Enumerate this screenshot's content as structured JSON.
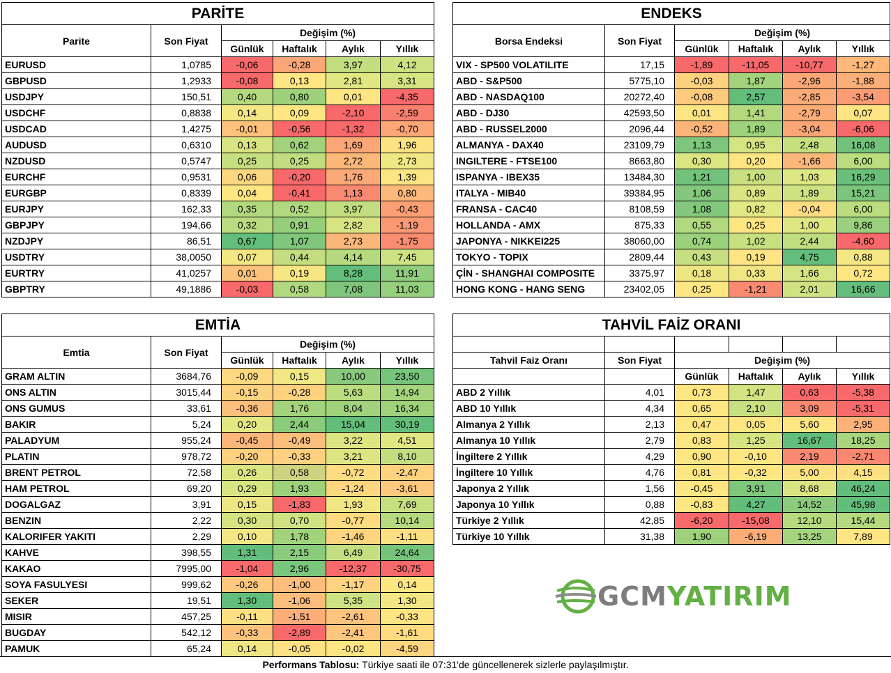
{
  "parite": {
    "title": "PARİTE",
    "col_name": "Parite",
    "col_price": "Son Fiyat",
    "col_change": "Değişim (%)",
    "col_d": "Günlük",
    "col_w": "Haftalık",
    "col_m": "Aylık",
    "col_y": "Yıllık",
    "rows": [
      {
        "name": "EURUSD",
        "price": "1,0785",
        "d": "-0,06",
        "w": "-0,28",
        "m": "3,97",
        "y": "4,12"
      },
      {
        "name": "GBPUSD",
        "price": "1,2933",
        "d": "-0,08",
        "w": "0,13",
        "m": "2,81",
        "y": "3,31"
      },
      {
        "name": "USDJPY",
        "price": "150,51",
        "d": "0,40",
        "w": "0,80",
        "m": "0,01",
        "y": "-4,35"
      },
      {
        "name": "USDCHF",
        "price": "0,8838",
        "d": "0,14",
        "w": "0,09",
        "m": "-2,10",
        "y": "-2,59"
      },
      {
        "name": "USDCAD",
        "price": "1,4275",
        "d": "-0,01",
        "w": "-0,56",
        "m": "-1,32",
        "y": "-0,70"
      },
      {
        "name": "AUDUSD",
        "price": "0,6310",
        "d": "0,13",
        "w": "0,62",
        "m": "1,69",
        "y": "1,96"
      },
      {
        "name": "NZDUSD",
        "price": "0,5747",
        "d": "0,25",
        "w": "0,25",
        "m": "2,72",
        "y": "2,73"
      },
      {
        "name": "EURCHF",
        "price": "0,9531",
        "d": "0,06",
        "w": "-0,20",
        "m": "1,76",
        "y": "1,39"
      },
      {
        "name": "EURGBP",
        "price": "0,8339",
        "d": "0,04",
        "w": "-0,41",
        "m": "1,13",
        "y": "0,80"
      },
      {
        "name": "EURJPY",
        "price": "162,33",
        "d": "0,35",
        "w": "0,52",
        "m": "3,97",
        "y": "-0,43"
      },
      {
        "name": "GBPJPY",
        "price": "194,66",
        "d": "0,32",
        "w": "0,91",
        "m": "2,82",
        "y": "-1,19"
      },
      {
        "name": "NZDJPY",
        "price": "86,51",
        "d": "0,67",
        "w": "1,07",
        "m": "2,73",
        "y": "-1,75"
      },
      {
        "name": "USDTRY",
        "price": "38,0050",
        "d": "0,07",
        "w": "0,44",
        "m": "4,14",
        "y": "7,45"
      },
      {
        "name": "EURTRY",
        "price": "41,0257",
        "d": "0,01",
        "w": "0,19",
        "m": "8,28",
        "y": "11,91"
      },
      {
        "name": "GBPTRY",
        "price": "49,1886",
        "d": "-0,03",
        "w": "0,58",
        "m": "7,08",
        "y": "11,03"
      }
    ],
    "colors": [
      [
        "#f8696b",
        "#fba676",
        "#c2de80",
        "#cde283"
      ],
      [
        "#f8696b",
        "#ffe684",
        "#e1e883",
        "#d6e482"
      ],
      [
        "#b4d97e",
        "#9dd17b",
        "#ffe583",
        "#f8696b"
      ],
      [
        "#f4e784",
        "#fee683",
        "#f8696b",
        "#f97f6f"
      ],
      [
        "#fdc27c",
        "#f8696b",
        "#f8696b",
        "#fba776"
      ],
      [
        "#d8e582",
        "#a2d37c",
        "#fba676",
        "#fde282"
      ],
      [
        "#c5df81",
        "#c1dd80",
        "#fbb879",
        "#f1e784"
      ],
      [
        "#fdd680",
        "#f8696b",
        "#fbaa77",
        "#fee583"
      ],
      [
        "#ffe683",
        "#f8696b",
        "#f98a71",
        "#fcb97a"
      ],
      [
        "#b3d97f",
        "#b1d87f",
        "#c2de80",
        "#faa074"
      ],
      [
        "#bbdb80",
        "#95cf7c",
        "#d8e482",
        "#fa9873"
      ],
      [
        "#63be7b",
        "#80c77c",
        "#fbb779",
        "#f98d71"
      ],
      [
        "#f3e784",
        "#c3de81",
        "#b7d97f",
        "#cce283"
      ],
      [
        "#fdc27c",
        "#f7e784",
        "#63be7b",
        "#90cd7d"
      ],
      [
        "#f8696b",
        "#b0d87f",
        "#7fc67c",
        "#96cf7d"
      ]
    ]
  },
  "endeks": {
    "title": "ENDEKS",
    "col_name": "Borsa Endeksi",
    "col_price": "Son Fiyat",
    "col_change": "Değişim (%)",
    "col_d": "Günlük",
    "col_w": "Haftalık",
    "col_m": "Aylık",
    "col_y": "Yıllık",
    "rows": [
      {
        "name": "VIX  - SP500 VOLATILITE",
        "price": "17,15",
        "d": "-1,89",
        "w": "-11,05",
        "m": "-10,77",
        "y": "-1,27"
      },
      {
        "name": "ABD - S&P500",
        "price": "5775,10",
        "d": "-0,03",
        "w": "1,87",
        "m": "-2,96",
        "y": "-1,88"
      },
      {
        "name": "ABD - NASDAQ100",
        "price": "20272,40",
        "d": "-0,08",
        "w": "2,57",
        "m": "-2,85",
        "y": "-3,54"
      },
      {
        "name": "ABD - DJ30",
        "price": "42593,50",
        "d": "0,01",
        "w": "1,41",
        "m": "-2,79",
        "y": "0,07"
      },
      {
        "name": "ABD - RUSSEL2000",
        "price": "2096,44",
        "d": "-0,52",
        "w": "1,89",
        "m": "-3,04",
        "y": "-6,06"
      },
      {
        "name": "ALMANYA - DAX40",
        "price": "23109,79",
        "d": "1,13",
        "w": "0,95",
        "m": "2,48",
        "y": "16,08"
      },
      {
        "name": "INGILTERE - FTSE100",
        "price": "8663,80",
        "d": "0,30",
        "w": "0,20",
        "m": "-1,66",
        "y": "6,00"
      },
      {
        "name": "ISPANYA - IBEX35",
        "price": "13484,30",
        "d": "1,21",
        "w": "1,00",
        "m": "1,03",
        "y": "16,29"
      },
      {
        "name": "ITALYA - MIB40",
        "price": "39384,95",
        "d": "1,06",
        "w": "0,89",
        "m": "1,89",
        "y": "15,21"
      },
      {
        "name": "FRANSA - CAC40",
        "price": "8108,59",
        "d": "1,08",
        "w": "0,82",
        "m": "-0,04",
        "y": "6,00"
      },
      {
        "name": "HOLLANDA - AMX",
        "price": "875,33",
        "d": "0,55",
        "w": "0,25",
        "m": "1,00",
        "y": "9,86"
      },
      {
        "name": "JAPONYA - NIKKEI225",
        "price": "38060,00",
        "d": "0,74",
        "w": "1,02",
        "m": "2,44",
        "y": "-4,60"
      },
      {
        "name": "TOKYO - TOPIX",
        "price": "2809,44",
        "d": "0,43",
        "w": "0,19",
        "m": "4,75",
        "y": "0,88"
      },
      {
        "name": "ÇİN - SHANGHAI COMPOSITE",
        "price": "3375,97",
        "d": "0,18",
        "w": "0,33",
        "m": "1,66",
        "y": "0,72"
      },
      {
        "name": "HONG KONG - HANG SENG",
        "price": "23402,05",
        "d": "0,25",
        "w": "-1,21",
        "m": "2,01",
        "y": "16,66"
      }
    ],
    "colors": [
      [
        "#f8696b",
        "#f8696b",
        "#f8696b",
        "#fdb87a"
      ],
      [
        "#fdd27f",
        "#a3d37d",
        "#fba876",
        "#fcb079"
      ],
      [
        "#fdca7e",
        "#63be7b",
        "#fbab77",
        "#fb9c74"
      ],
      [
        "#fee583",
        "#b4d97f",
        "#fcad77",
        "#fee483"
      ],
      [
        "#fcb479",
        "#9fd27c",
        "#fba676",
        "#f8696b"
      ],
      [
        "#7dc67c",
        "#d5e482",
        "#c5df81",
        "#72c27c"
      ],
      [
        "#dbe683",
        "#fee683",
        "#fcb87a",
        "#bcdc80"
      ],
      [
        "#73c27b",
        "#c8e082",
        "#dde783",
        "#6ac07b"
      ],
      [
        "#85c87d",
        "#d8e582",
        "#cfe282",
        "#7bc57c"
      ],
      [
        "#83c77d",
        "#e2e883",
        "#fedc82",
        "#bcdc80"
      ],
      [
        "#b0d87f",
        "#fee683",
        "#dfe783",
        "#9bd17e"
      ],
      [
        "#9cd17c",
        "#c7e081",
        "#c0dd80",
        "#f8696b"
      ],
      [
        "#c6df81",
        "#ffe583",
        "#63be7b",
        "#f4e784"
      ],
      [
        "#ece683",
        "#f0e684",
        "#d5e482",
        "#fee683"
      ],
      [
        "#fee683",
        "#f98a71",
        "#d0e282",
        "#63be7b"
      ]
    ]
  },
  "emtia": {
    "title": "EMTİA",
    "col_name": "Emtia",
    "col_price": "Son Fiyat",
    "col_change": "Değişim (%)",
    "col_d": "Günlük",
    "col_w": "Haftalık",
    "col_m": "Aylık",
    "col_y": "Yıllık",
    "rows": [
      {
        "name": "GRAM ALTIN",
        "price": "3684,76",
        "d": "-0,09",
        "w": "0,15",
        "m": "10,00",
        "y": "23,50"
      },
      {
        "name": "ONS ALTIN",
        "price": "3015,44",
        "d": "-0,15",
        "w": "-0,28",
        "m": "5,63",
        "y": "14,94"
      },
      {
        "name": "ONS GUMUS",
        "price": "33,61",
        "d": "-0,36",
        "w": "1,76",
        "m": "8,04",
        "y": "16,34"
      },
      {
        "name": "BAKIR",
        "price": "5,24",
        "d": "0,20",
        "w": "2,44",
        "m": "15,04",
        "y": "30,19"
      },
      {
        "name": "PALADYUM",
        "price": "955,24",
        "d": "-0,45",
        "w": "-0,49",
        "m": "3,22",
        "y": "4,51"
      },
      {
        "name": "PLATIN",
        "price": "978,72",
        "d": "-0,20",
        "w": "-0,33",
        "m": "3,21",
        "y": "8,10"
      },
      {
        "name": "BRENT PETROL",
        "price": "72,58",
        "d": "0,26",
        "w": "0,58",
        "m": "-0,72",
        "y": "-2,47"
      },
      {
        "name": "HAM PETROL",
        "price": "69,20",
        "d": "0,29",
        "w": "1,93",
        "m": "-1,24",
        "y": "-3,61"
      },
      {
        "name": "DOGALGAZ",
        "price": "3,91",
        "d": "0,15",
        "w": "-1,83",
        "m": "1,93",
        "y": "7,69"
      },
      {
        "name": "BENZIN",
        "price": "2,22",
        "d": "0,30",
        "w": "0,70",
        "m": "-0,77",
        "y": "10,14"
      },
      {
        "name": "KALORIFER YAKITI",
        "price": "2,29",
        "d": "0,10",
        "w": "1,78",
        "m": "-1,46",
        "y": "-1,11"
      },
      {
        "name": "KAHVE",
        "price": "398,55",
        "d": "1,31",
        "w": "2,15",
        "m": "6,49",
        "y": "24,64"
      },
      {
        "name": "KAKAO",
        "price": "7995,00",
        "d": "-1,04",
        "w": "2,96",
        "m": "-12,37",
        "y": "-30,75"
      },
      {
        "name": "SOYA FASULYESI",
        "price": "999,62",
        "d": "-0,26",
        "w": "-1,00",
        "m": "-1,17",
        "y": "0,14"
      },
      {
        "name": "SEKER",
        "price": "19,51",
        "d": "1,30",
        "w": "-1,06",
        "m": "5,35",
        "y": "1,30"
      },
      {
        "name": "MISIR",
        "price": "457,25",
        "d": "-0,11",
        "w": "-1,51",
        "m": "-2,61",
        "y": "-0,33"
      },
      {
        "name": "BUGDAY",
        "price": "542,12",
        "d": "-0,33",
        "w": "-2,89",
        "m": "-2,41",
        "y": "-1,61"
      },
      {
        "name": "PAMUK",
        "price": "65,24",
        "d": "0,14",
        "w": "-0,05",
        "m": "-0,02",
        "y": "-4,59"
      }
    ],
    "colors": [
      [
        "#fed981",
        "#f1e784",
        "#8ac97d",
        "#77c47c"
      ],
      [
        "#fed380",
        "#fed17f",
        "#bcdc80",
        "#a7d57e"
      ],
      [
        "#fdbf7c",
        "#a4d37d",
        "#a1d27c",
        "#a0d27c"
      ],
      [
        "#e3e883",
        "#8acb7c",
        "#63be7b",
        "#63be7b"
      ],
      [
        "#fcb67a",
        "#fdbf7c",
        "#dce683",
        "#e2e783"
      ],
      [
        "#fed07f",
        "#fed07f",
        "#dce683",
        "#c3de81"
      ],
      [
        "#dbe683",
        "#ced381",
        "#fedc82",
        "#fed27f"
      ],
      [
        "#d7e582",
        "#9dd17b",
        "#fed680",
        "#fec97e"
      ],
      [
        "#ede684",
        "#f8696b",
        "#f1e684",
        "#c5df81"
      ],
      [
        "#d5e382",
        "#d0e282",
        "#fedb81",
        "#b7da80"
      ],
      [
        "#f2e784",
        "#a1d27c",
        "#fed47f",
        "#fede82"
      ],
      [
        "#63be7b",
        "#8acb7c",
        "#c4df81",
        "#76c47c"
      ],
      [
        "#f8696b",
        "#79c67c",
        "#f8696b",
        "#f8696b"
      ],
      [
        "#fec97e",
        "#fdbd7c",
        "#fed27f",
        "#fee683"
      ],
      [
        "#63be7b",
        "#fdbd7c",
        "#cde282",
        "#f2e784"
      ],
      [
        "#fee082",
        "#fcad78",
        "#fec37d",
        "#fee483"
      ],
      [
        "#fdc37d",
        "#f8696b",
        "#fec57d",
        "#fedb81"
      ],
      [
        "#f0e784",
        "#fee182",
        "#fee583",
        "#fed580"
      ]
    ]
  },
  "tahvil": {
    "title": "TAHVİL FAİZ ORANI",
    "col_name": "Tahvil Faiz Oranı",
    "col_price": "Son Fiyat",
    "col_change": "Değişim (%)",
    "col_d": "Günlük",
    "col_w": "Haftalık",
    "col_m": "Aylık",
    "col_y": "Yıllık",
    "rows": [
      {
        "name": "ABD 2 Yıllık",
        "price": "4,01",
        "d": "0,73",
        "w": "1,47",
        "m": "0,63",
        "y": "-5,38"
      },
      {
        "name": "ABD 10 Yıllık",
        "price": "4,34",
        "d": "0,65",
        "w": "2,10",
        "m": "3,09",
        "y": "-5,31"
      },
      {
        "name": "Almanya 2 Yıllık",
        "price": "2,13",
        "d": "0,47",
        "w": "0,05",
        "m": "5,60",
        "y": "2,95"
      },
      {
        "name": "Almanya 10 Yıllık",
        "price": "2,79",
        "d": "0,83",
        "w": "1,25",
        "m": "16,67",
        "y": "18,25"
      },
      {
        "name": "İngiltere 2 Yıllık",
        "price": "4,29",
        "d": "0,90",
        "w": "-0,10",
        "m": "2,19",
        "y": "-2,71"
      },
      {
        "name": "İngiltere 10 Yıllık",
        "price": "4,76",
        "d": "0,81",
        "w": "-0,32",
        "m": "5,00",
        "y": "4,15"
      },
      {
        "name": "Japonya 2 Yıllık",
        "price": "1,56",
        "d": "-0,45",
        "w": "3,91",
        "m": "8,68",
        "y": "46,24"
      },
      {
        "name": "Japonya 10 Yıllık",
        "price": "0,88",
        "d": "-0,83",
        "w": "4,27",
        "m": "14,52",
        "y": "45,98"
      },
      {
        "name": "Türkiye 2 Yıllık",
        "price": "42,85",
        "d": "-6,20",
        "w": "-15,08",
        "m": "12,10",
        "y": "15,44"
      },
      {
        "name": "Türkiye 10 Yıllık",
        "price": "31,38",
        "d": "1,90",
        "w": "-6,19",
        "m": "13,25",
        "y": "7,89"
      }
    ],
    "colors": [
      [
        "#fee683",
        "#d3e382",
        "#f8696b",
        "#f8696b"
      ],
      [
        "#fee683",
        "#c7e081",
        "#f98a71",
        "#f8696b"
      ],
      [
        "#fee683",
        "#fee683",
        "#fee683",
        "#fcb179"
      ],
      [
        "#fee683",
        "#d6e482",
        "#63be7b",
        "#a9d57e"
      ],
      [
        "#fee683",
        "#fee683",
        "#f98a71",
        "#f98771"
      ],
      [
        "#fee683",
        "#fee683",
        "#fde282",
        "#fde082"
      ],
      [
        "#fee683",
        "#7ec77c",
        "#d9e582",
        "#63be7b"
      ],
      [
        "#fee683",
        "#63be7b",
        "#8ccb7c",
        "#63be7b"
      ],
      [
        "#f8696b",
        "#f8696b",
        "#b7da7f",
        "#b4d97f"
      ],
      [
        "#9ed17c",
        "#fbac77",
        "#a5d47e",
        "#fee583"
      ]
    ]
  },
  "footer": {
    "bold": "Performans Tablosu:",
    "text": " Türkiye saati ile 07:31'de güncellenerek sizlerle paylaşılmıştır."
  },
  "logo": {
    "part1": "GCM",
    "part2": "YATIRIM",
    "accent": "#63b045",
    "gray": "#7d7d7d"
  }
}
